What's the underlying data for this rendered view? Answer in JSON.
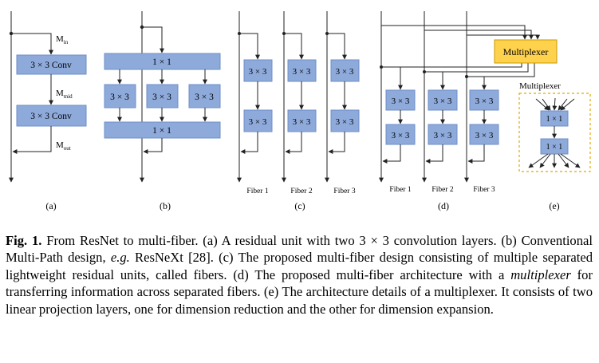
{
  "diagram": {
    "a": {
      "panel_label": "(a)",
      "m_in": [
        "M",
        "in"
      ],
      "m_mid": [
        "M",
        "mid"
      ],
      "m_out": [
        "M",
        "out"
      ],
      "conv1": "3 × 3 Conv",
      "conv2": "3 × 3 Conv"
    },
    "b": {
      "panel_label": "(b)",
      "top_block": "1 × 1",
      "mid_blocks": [
        "3 × 3",
        "3 × 3",
        "3 × 3"
      ],
      "bottom_block": "1 × 1"
    },
    "c": {
      "panel_label": "(c)",
      "fibers": [
        {
          "label": "Fiber 1",
          "blocks": [
            "3 × 3",
            "3 × 3"
          ]
        },
        {
          "label": "Fiber 2",
          "blocks": [
            "3 × 3",
            "3 × 3"
          ]
        },
        {
          "label": "Fiber 3",
          "blocks": [
            "3 × 3",
            "3 × 3"
          ]
        }
      ]
    },
    "d": {
      "panel_label": "(d)",
      "multiplexer": "Multiplexer",
      "fibers": [
        {
          "label": "Fiber 1",
          "blocks": [
            "3 × 3",
            "3 × 3"
          ]
        },
        {
          "label": "Fiber 2",
          "blocks": [
            "3 × 3",
            "3 × 3"
          ]
        },
        {
          "label": "Fiber 3",
          "blocks": [
            "3 × 3",
            "3 × 3"
          ]
        }
      ]
    },
    "e": {
      "panel_label": "(e)",
      "title": "Multiplexer",
      "blocks": [
        "1 × 1",
        "1 × 1"
      ]
    }
  },
  "caption": {
    "label": "Fig. 1.",
    "segments": [
      {
        "text": " From ResNet to multi-fiber. (a) A residual unit with two 3 × 3 convolution layers. (b) Conventional Multi-Path design, ",
        "italic": false
      },
      {
        "text": "e.g.",
        "italic": true
      },
      {
        "text": " ResNeXt [28]. (c) The proposed multi-fiber design consisting of multiple separated lightweight residual units, called fibers. (d) The proposed multi-fiber architecture with a ",
        "italic": false
      },
      {
        "text": "multiplexer",
        "italic": true
      },
      {
        "text": " for transferring information across separated fibers. (e) The architecture details of a multiplexer. It consists of two linear projection layers, one for dimension reduction and the other for dimension expansion.",
        "italic": false
      }
    ]
  },
  "colors": {
    "block_fill": "#8eaadb",
    "multiplexer_fill": "#ffd24d",
    "multiplexer_border": "#e0a800"
  }
}
